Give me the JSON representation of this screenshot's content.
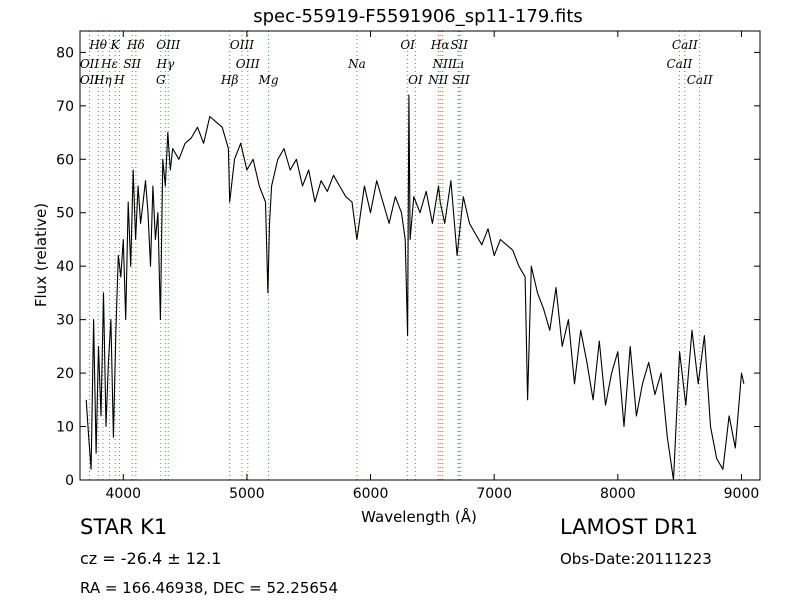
{
  "chart_data": {
    "type": "line",
    "title": "spec-55919-F5591906_sp11-179.fits",
    "xlabel": "Wavelength (Å)",
    "ylabel": "Flux (relative)",
    "xlim": [
      3650,
      9150
    ],
    "ylim": [
      0,
      84
    ],
    "x_ticks": [
      4000,
      5000,
      6000,
      7000,
      8000,
      9000
    ],
    "y_ticks": [
      0,
      10,
      20,
      30,
      40,
      50,
      60,
      70,
      80
    ],
    "grid": false,
    "line_color": "#000000",
    "marker_color": "#33aa33",
    "series": [
      {
        "x": [
          3700,
          3720,
          3740,
          3760,
          3780,
          3800,
          3820,
          3840,
          3860,
          3880,
          3900,
          3920,
          3940,
          3960,
          3980,
          4000,
          4020,
          4040,
          4060,
          4080,
          4100,
          4120,
          4140,
          4160,
          4180,
          4200,
          4220,
          4240,
          4260,
          4280,
          4300,
          4320,
          4340,
          4360,
          4380,
          4400,
          4450,
          4500,
          4550,
          4600,
          4650,
          4700,
          4750,
          4800,
          4850,
          4861,
          4900,
          4950,
          5000,
          5050,
          5100,
          5150,
          5170,
          5183,
          5200,
          5250,
          5300,
          5350,
          5400,
          5450,
          5500,
          5550,
          5600,
          5650,
          5700,
          5750,
          5800,
          5850,
          5890,
          5950,
          6000,
          6050,
          6100,
          6150,
          6200,
          6250,
          6280,
          6300,
          6310,
          6320,
          6350,
          6400,
          6450,
          6500,
          6550,
          6563,
          6600,
          6650,
          6700,
          6750,
          6800,
          6850,
          6900,
          6950,
          7000,
          7050,
          7100,
          7150,
          7200,
          7250,
          7270,
          7300,
          7350,
          7400,
          7450,
          7500,
          7550,
          7600,
          7650,
          7700,
          7750,
          7800,
          7850,
          7900,
          7950,
          8000,
          8050,
          8100,
          8150,
          8200,
          8250,
          8300,
          8350,
          8400,
          8450,
          8500,
          8550,
          8600,
          8650,
          8700,
          8750,
          8800,
          8850,
          8900,
          8950,
          9000,
          9020
        ],
        "y": [
          15,
          8,
          2,
          30,
          5,
          25,
          12,
          35,
          10,
          22,
          30,
          8,
          28,
          42,
          38,
          45,
          30,
          52,
          40,
          58,
          45,
          55,
          48,
          52,
          56,
          50,
          40,
          55,
          45,
          50,
          30,
          60,
          55,
          65,
          58,
          62,
          60,
          63,
          64,
          66,
          63,
          68,
          67,
          66,
          62,
          52,
          60,
          63,
          58,
          60,
          55,
          52,
          35,
          48,
          55,
          60,
          62,
          58,
          60,
          55,
          58,
          52,
          56,
          54,
          57,
          55,
          53,
          52,
          45,
          55,
          50,
          56,
          52,
          48,
          53,
          50,
          45,
          27,
          72,
          45,
          53,
          50,
          54,
          48,
          55,
          52,
          48,
          56,
          42,
          53,
          48,
          46,
          44,
          47,
          42,
          45,
          44,
          43,
          40,
          38,
          15,
          40,
          35,
          32,
          28,
          36,
          25,
          30,
          18,
          28,
          22,
          15,
          26,
          14,
          20,
          24,
          10,
          25,
          12,
          18,
          22,
          16,
          20,
          8,
          0,
          24,
          14,
          28,
          18,
          27,
          10,
          4,
          2,
          12,
          6,
          20,
          18
        ]
      }
    ],
    "lines_top": [
      {
        "label": "Hθ",
        "x": 3797
      },
      {
        "label": "K",
        "x": 3934
      },
      {
        "label": "Hδ",
        "x": 4102
      },
      {
        "label": "OIII",
        "x": 4364
      },
      {
        "label": "OIII",
        "x": 4960
      },
      {
        "label": "OI",
        "x": 6300
      },
      {
        "label": "Hα",
        "x": 6563
      },
      {
        "label": "SII",
        "x": 6717
      },
      {
        "label": "CaII",
        "x": 8542
      }
    ],
    "lines_mid": [
      {
        "label": "OII",
        "x": 3727
      },
      {
        "label": "Hε",
        "x": 3889
      },
      {
        "label": "SII",
        "x": 4072
      },
      {
        "label": "Hγ",
        "x": 4341
      },
      {
        "label": "OIII",
        "x": 5007
      },
      {
        "label": "Na",
        "x": 5890
      },
      {
        "label": "NII",
        "x": 6583
      },
      {
        "label": "Lı",
        "x": 6708
      },
      {
        "label": "CaII",
        "x": 8498
      }
    ],
    "lines_low": [
      {
        "label": "OII",
        "x": 3727
      },
      {
        "label": "Hη",
        "x": 3835
      },
      {
        "label": "H",
        "x": 3969
      },
      {
        "label": "G",
        "x": 4304
      },
      {
        "label": "Hβ",
        "x": 4861
      },
      {
        "label": "Mg",
        "x": 5175
      },
      {
        "label": "OI",
        "x": 6363
      },
      {
        "label": "NII",
        "x": 6548
      },
      {
        "label": "SII",
        "x": 6731
      },
      {
        "label": "CaII",
        "x": 8662
      }
    ]
  },
  "info": {
    "object_class": "STAR   K1",
    "survey": "LAMOST DR1",
    "redshift": "cz = -26.4 ± 12.1",
    "obs_date": "Obs-Date:20111223",
    "coords": "RA = 166.46938, DEC = 52.25654"
  }
}
